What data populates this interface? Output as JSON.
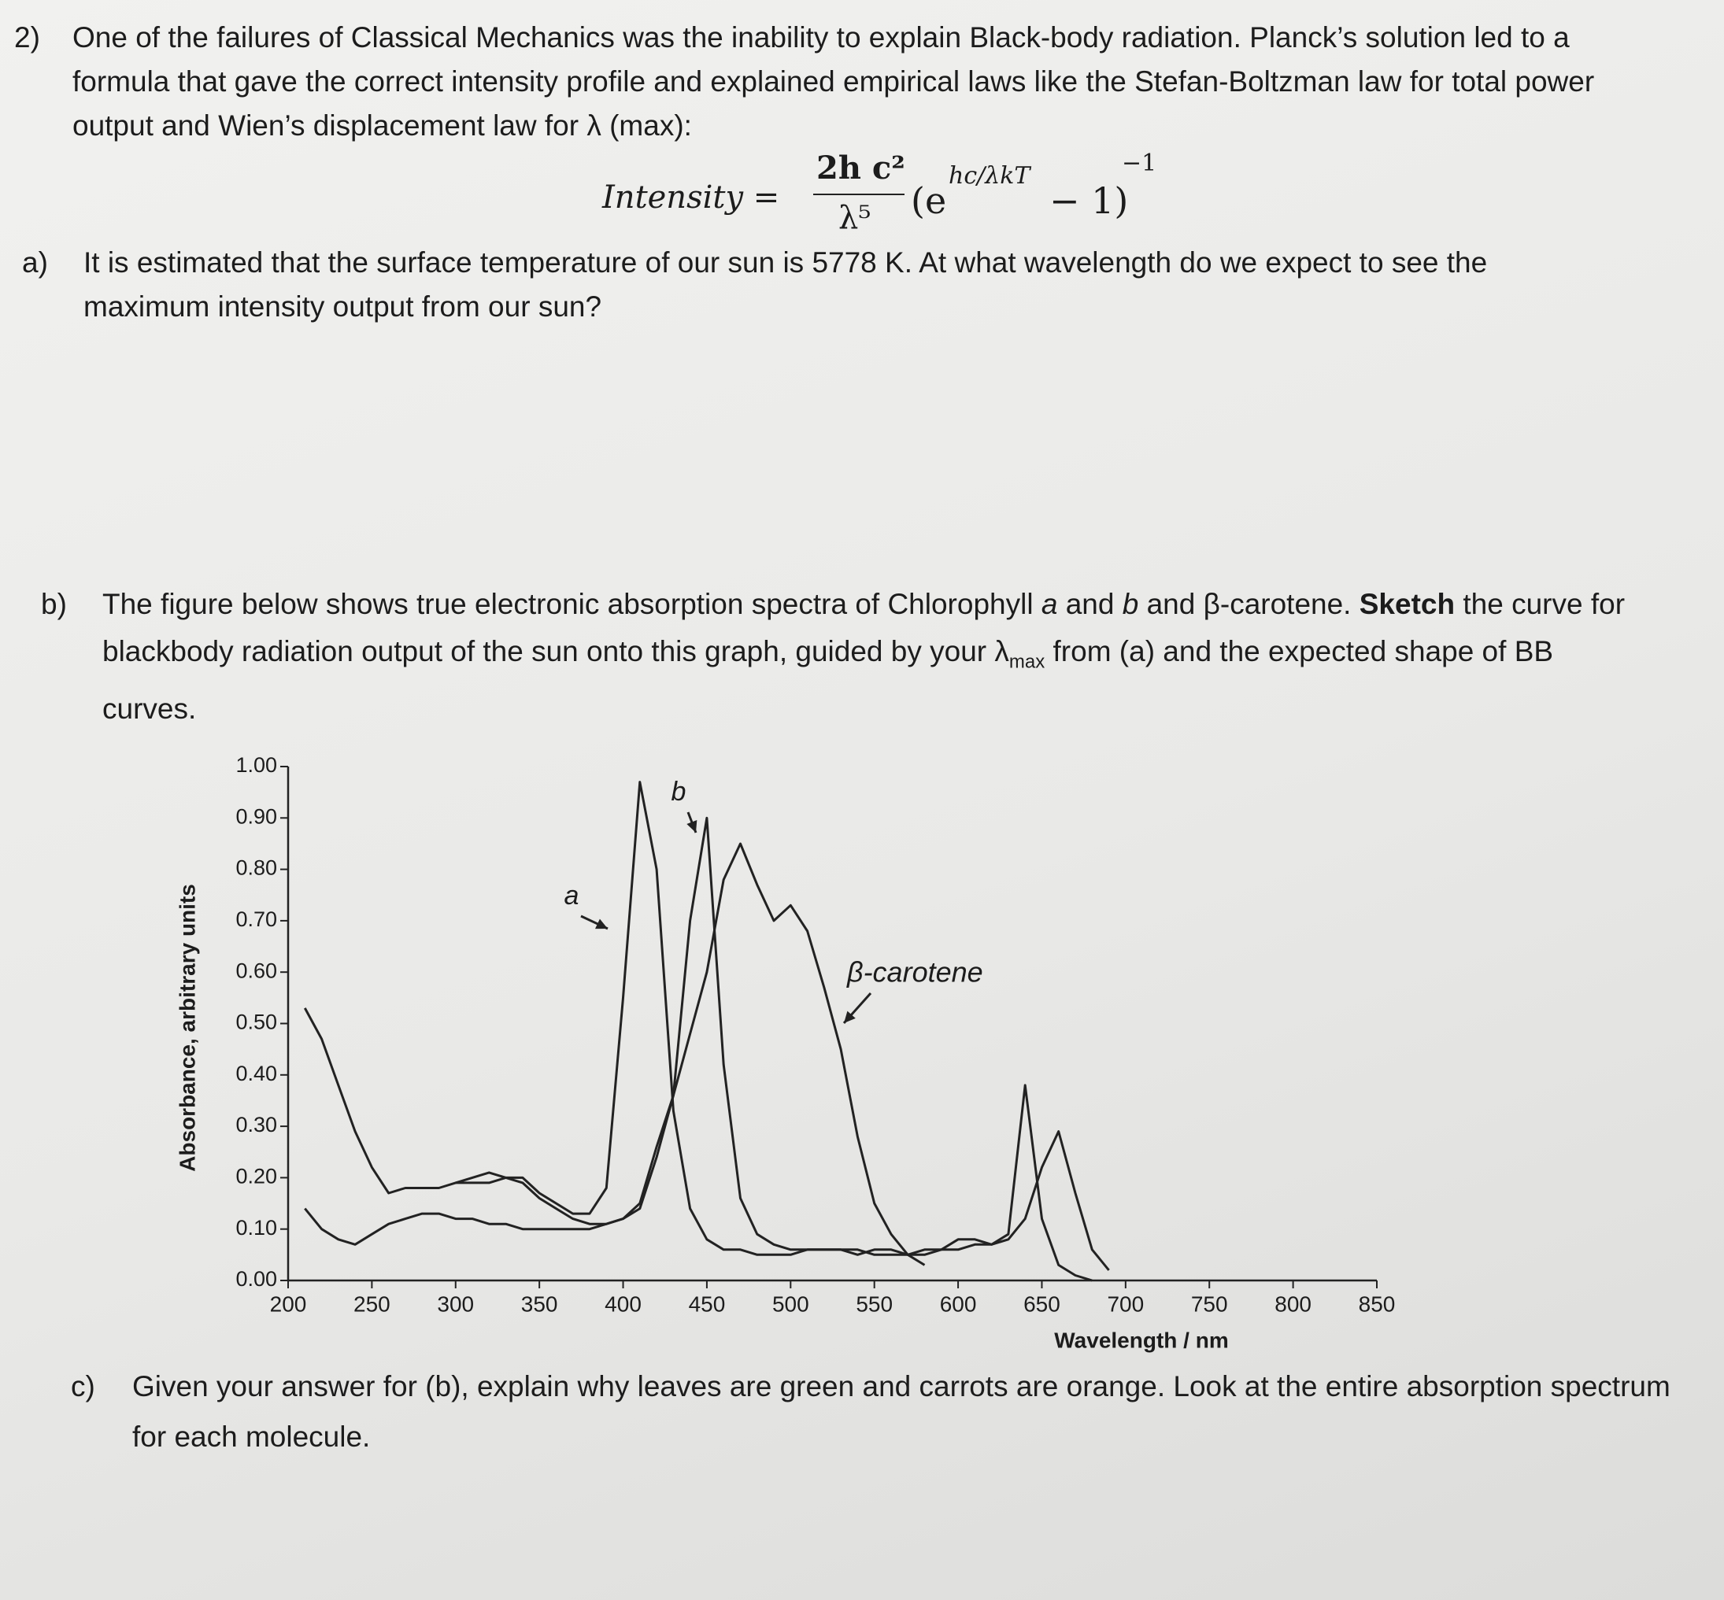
{
  "question": {
    "number": "2)",
    "text": "One of the failures of Classical Mechanics was the inability to explain Black-body radiation. Planck’s solution led to a formula that gave the correct intensity profile and explained empirical laws like the Stefan-Boltzman law for total power output and Wien’s displacement law for λ (max):"
  },
  "formula": {
    "lhs": "Intensity =",
    "numerator": "2h c²",
    "denominator": "λ⁵",
    "open": "(e",
    "exponent": "hc/λkT",
    "tail": "− 1)",
    "power": "−1"
  },
  "part_a": {
    "label": "a)",
    "text": "It is estimated that the surface temperature of our sun is 5778 K. At what wavelength do we expect to see the maximum intensity output from our sun?"
  },
  "part_b": {
    "label": "b)",
    "text": [
      "The figure below shows true electronic absorption spectra of Chlorophyll ",
      "a",
      " and ",
      "b",
      " and β-carotene. ",
      "Sketch",
      " the curve for blackbody radiation output of the sun onto this graph, guided by your λ",
      "max",
      " from (a) and the expected shape of BB curves."
    ]
  },
  "part_c": {
    "label": "c)",
    "text": "Given your answer for (b), explain why leaves are green and carrots are orange. Look at the entire absorption spectrum for each molecule."
  },
  "chart_data": {
    "type": "line",
    "x_label": "Wavelength / nm",
    "y_label": "Absorbance, arbitrary units",
    "x": [
      210,
      220,
      230,
      240,
      250,
      260,
      270,
      280,
      290,
      300,
      310,
      320,
      330,
      340,
      350,
      360,
      370,
      380,
      390,
      400,
      410,
      420,
      430,
      440,
      450,
      460,
      470,
      480,
      490,
      500,
      510,
      520,
      530,
      540,
      550,
      560,
      570,
      580,
      590,
      600,
      610,
      620,
      630,
      640,
      650,
      660,
      670,
      680,
      690
    ],
    "series": [
      {
        "name": "a",
        "color": "#222222",
        "values": [
          0.53,
          0.47,
          0.38,
          0.29,
          0.22,
          0.17,
          0.18,
          0.18,
          0.18,
          0.19,
          0.19,
          0.19,
          0.2,
          0.2,
          0.17,
          0.15,
          0.13,
          0.13,
          0.18,
          0.55,
          0.97,
          0.8,
          0.33,
          0.14,
          0.08,
          0.06,
          0.06,
          0.05,
          0.05,
          0.05,
          0.06,
          0.06,
          0.06,
          0.05,
          0.06,
          0.06,
          0.05,
          0.05,
          0.06,
          0.08,
          0.08,
          0.07,
          0.09,
          0.38,
          0.12,
          0.03,
          0.01,
          0,
          null
        ]
      },
      {
        "name": "b",
        "color": "#222222",
        "values": [
          0.14,
          0.1,
          0.08,
          0.07,
          0.09,
          0.11,
          0.12,
          0.13,
          0.13,
          0.12,
          0.12,
          0.11,
          0.11,
          0.1,
          0.1,
          0.1,
          0.1,
          0.1,
          0.11,
          0.12,
          0.15,
          0.26,
          0.36,
          0.7,
          0.9,
          0.42,
          0.16,
          0.09,
          0.07,
          0.06,
          0.06,
          0.06,
          0.06,
          0.06,
          0.05,
          0.05,
          0.05,
          0.06,
          0.06,
          0.06,
          0.07,
          0.07,
          0.08,
          0.12,
          0.22,
          0.29,
          0.17,
          0.06,
          0.02
        ]
      },
      {
        "name": "β-carotene",
        "color": "#222222",
        "values": [
          null,
          null,
          null,
          null,
          null,
          null,
          null,
          null,
          null,
          0.19,
          0.2,
          0.21,
          0.2,
          0.19,
          0.16,
          0.14,
          0.12,
          0.11,
          0.11,
          0.12,
          0.14,
          0.24,
          0.36,
          0.48,
          0.6,
          0.78,
          0.85,
          0.77,
          0.7,
          0.73,
          0.68,
          0.57,
          0.45,
          0.28,
          0.15,
          0.09,
          0.05,
          0.03,
          null,
          null,
          null,
          null,
          null,
          null,
          null,
          null,
          null,
          null,
          null
        ]
      }
    ],
    "xlim": [
      200,
      850
    ],
    "xticks": [
      200,
      250,
      300,
      350,
      400,
      450,
      500,
      550,
      600,
      650,
      700,
      750,
      800,
      850
    ],
    "ylim": [
      0,
      1
    ],
    "yticks": [
      {
        "value": 0,
        "label": "0.00"
      },
      {
        "value": 0.1,
        "label": "0.10"
      },
      {
        "value": 0.2,
        "label": "0.20"
      },
      {
        "value": 0.3,
        "label": "0.30"
      },
      {
        "value": 0.4,
        "label": "0.40"
      },
      {
        "value": 0.5,
        "label": "0.50"
      },
      {
        "value": 0.6,
        "label": "0.60"
      },
      {
        "value": 0.7,
        "label": "0.70"
      },
      {
        "value": 0.8,
        "label": "0.80"
      },
      {
        "value": 0.9,
        "label": "0.90"
      },
      {
        "value": 1,
        "label": "1.00"
      }
    ],
    "grid": false
  }
}
